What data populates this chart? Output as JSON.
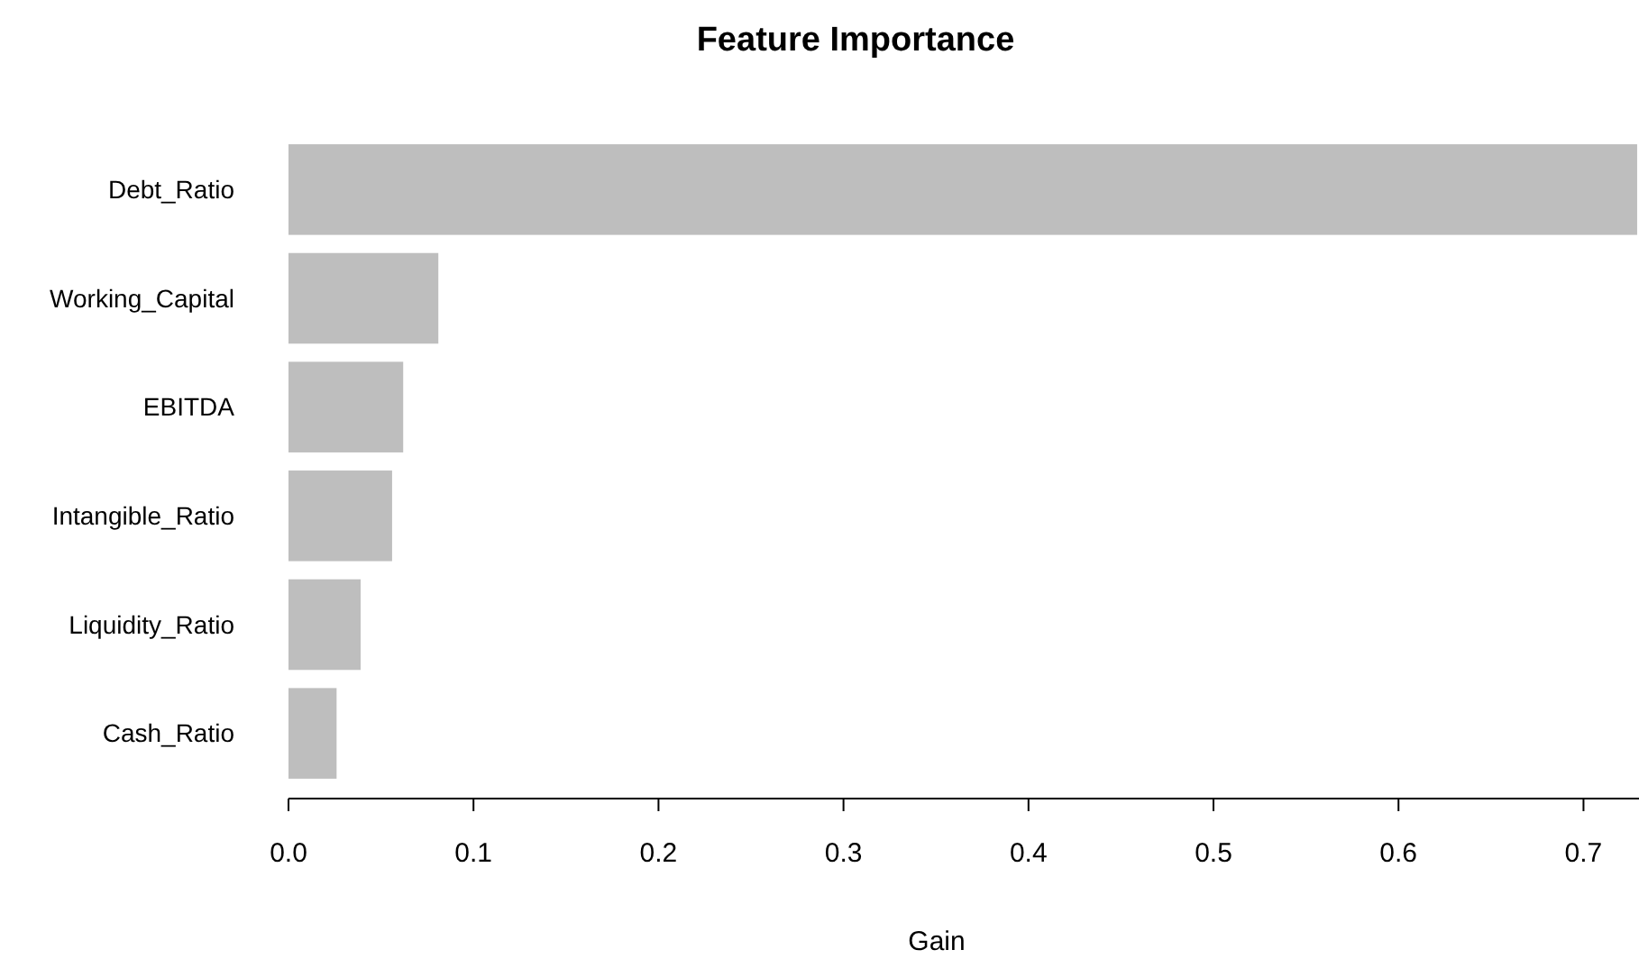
{
  "chart_data": {
    "type": "bar",
    "orientation": "horizontal",
    "title": "Feature Importance",
    "xlabel": "Gain",
    "categories": [
      "Debt_Ratio",
      "Working_Capital",
      "EBITDA",
      "Intangible_Ratio",
      "Liquidity_Ratio",
      "Cash_Ratio"
    ],
    "values": [
      0.729,
      0.081,
      0.062,
      0.056,
      0.039,
      0.026
    ],
    "color": "#bebebe",
    "xlim": [
      0,
      0.73
    ],
    "xticks": [
      {
        "value": 0,
        "label": "0.0"
      },
      0.1,
      0.2,
      0.3,
      0.4,
      0.5,
      0.6,
      0.7
    ],
    "grid": false
  }
}
